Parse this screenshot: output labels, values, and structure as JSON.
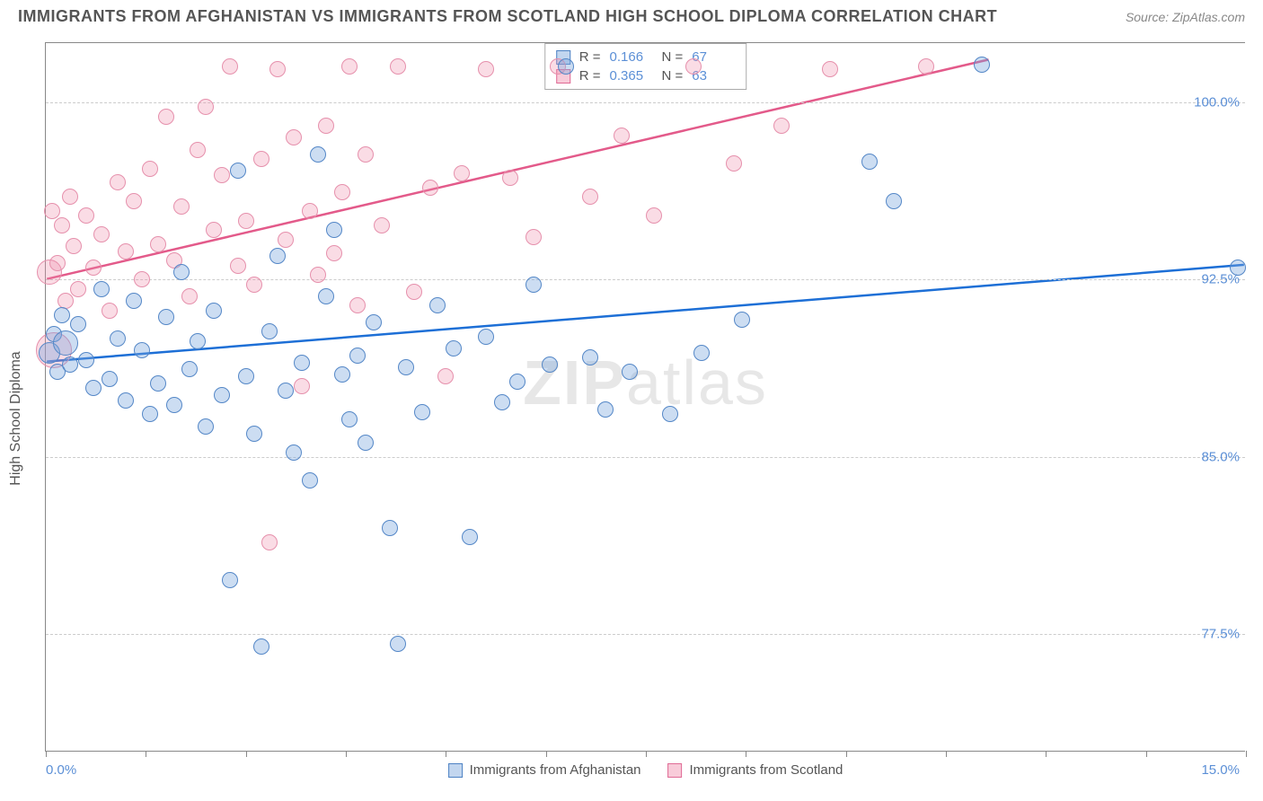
{
  "title": "IMMIGRANTS FROM AFGHANISTAN VS IMMIGRANTS FROM SCOTLAND HIGH SCHOOL DIPLOMA CORRELATION CHART",
  "source_label": "Source:",
  "source_name": "ZipAtlas.com",
  "ylabel": "High School Diploma",
  "watermark_a": "ZIP",
  "watermark_b": "atlas",
  "axes": {
    "xlim": [
      0.0,
      15.0
    ],
    "ylim": [
      72.5,
      102.5
    ],
    "xtick_positions": [
      0.0,
      1.25,
      2.5,
      3.75,
      5.0,
      6.25,
      7.5,
      8.75,
      10.0,
      11.25,
      12.5,
      13.75,
      15.0
    ],
    "ytick_positions": [
      77.5,
      85.0,
      92.5,
      100.0
    ],
    "ytick_labels": [
      "77.5%",
      "85.0%",
      "92.5%",
      "100.0%"
    ],
    "xmin_label": "0.0%",
    "xmax_label": "15.0%",
    "grid_color": "#cccccc",
    "background_color": "#ffffff"
  },
  "legend": {
    "series_a": "Immigrants from Afghanistan",
    "series_b": "Immigrants from Scotland",
    "r_label": "R =",
    "n_label": "N =",
    "a_r": "0.166",
    "a_n": "67",
    "b_r": "0.365",
    "b_n": "63"
  },
  "series": {
    "afghanistan": {
      "color_fill": "rgba(120,165,220,0.38)",
      "color_stroke": "#5487c7",
      "trend_color": "#1d6fd6",
      "trend_width": 2.5,
      "trend": {
        "x1": 0.0,
        "y1": 89.0,
        "x2": 15.0,
        "y2": 93.1
      },
      "marker_radius_default": 9,
      "points": [
        {
          "x": 0.05,
          "y": 89.4,
          "r": 12
        },
        {
          "x": 0.1,
          "y": 90.2,
          "r": 9
        },
        {
          "x": 0.15,
          "y": 88.6,
          "r": 9
        },
        {
          "x": 0.2,
          "y": 91.0,
          "r": 9
        },
        {
          "x": 0.25,
          "y": 89.8,
          "r": 14
        },
        {
          "x": 0.3,
          "y": 88.9,
          "r": 9
        },
        {
          "x": 0.4,
          "y": 90.6,
          "r": 9
        },
        {
          "x": 0.5,
          "y": 89.1,
          "r": 9
        },
        {
          "x": 0.6,
          "y": 87.9,
          "r": 9
        },
        {
          "x": 0.7,
          "y": 92.1,
          "r": 9
        },
        {
          "x": 0.8,
          "y": 88.3,
          "r": 9
        },
        {
          "x": 0.9,
          "y": 90.0,
          "r": 9
        },
        {
          "x": 1.0,
          "y": 87.4,
          "r": 9
        },
        {
          "x": 1.1,
          "y": 91.6,
          "r": 9
        },
        {
          "x": 1.2,
          "y": 89.5,
          "r": 9
        },
        {
          "x": 1.3,
          "y": 86.8,
          "r": 9
        },
        {
          "x": 1.4,
          "y": 88.1,
          "r": 9
        },
        {
          "x": 1.5,
          "y": 90.9,
          "r": 9
        },
        {
          "x": 1.6,
          "y": 87.2,
          "r": 9
        },
        {
          "x": 1.7,
          "y": 92.8,
          "r": 9
        },
        {
          "x": 1.8,
          "y": 88.7,
          "r": 9
        },
        {
          "x": 1.9,
          "y": 89.9,
          "r": 9
        },
        {
          "x": 2.0,
          "y": 86.3,
          "r": 9
        },
        {
          "x": 2.1,
          "y": 91.2,
          "r": 9
        },
        {
          "x": 2.2,
          "y": 87.6,
          "r": 9
        },
        {
          "x": 2.3,
          "y": 79.8,
          "r": 9
        },
        {
          "x": 2.4,
          "y": 97.1,
          "r": 9
        },
        {
          "x": 2.5,
          "y": 88.4,
          "r": 9
        },
        {
          "x": 2.6,
          "y": 86.0,
          "r": 9
        },
        {
          "x": 2.7,
          "y": 77.0,
          "r": 9
        },
        {
          "x": 2.8,
          "y": 90.3,
          "r": 9
        },
        {
          "x": 2.9,
          "y": 93.5,
          "r": 9
        },
        {
          "x": 3.0,
          "y": 87.8,
          "r": 9
        },
        {
          "x": 3.1,
          "y": 85.2,
          "r": 9
        },
        {
          "x": 3.2,
          "y": 89.0,
          "r": 9
        },
        {
          "x": 3.3,
          "y": 84.0,
          "r": 9
        },
        {
          "x": 3.4,
          "y": 97.8,
          "r": 9
        },
        {
          "x": 3.5,
          "y": 91.8,
          "r": 9
        },
        {
          "x": 3.6,
          "y": 94.6,
          "r": 9
        },
        {
          "x": 3.7,
          "y": 88.5,
          "r": 9
        },
        {
          "x": 3.8,
          "y": 86.6,
          "r": 9
        },
        {
          "x": 3.9,
          "y": 89.3,
          "r": 9
        },
        {
          "x": 4.0,
          "y": 85.6,
          "r": 9
        },
        {
          "x": 4.1,
          "y": 90.7,
          "r": 9
        },
        {
          "x": 4.3,
          "y": 82.0,
          "r": 9
        },
        {
          "x": 4.4,
          "y": 77.1,
          "r": 9
        },
        {
          "x": 4.5,
          "y": 88.8,
          "r": 9
        },
        {
          "x": 4.7,
          "y": 86.9,
          "r": 9
        },
        {
          "x": 4.9,
          "y": 91.4,
          "r": 9
        },
        {
          "x": 5.1,
          "y": 89.6,
          "r": 9
        },
        {
          "x": 5.3,
          "y": 81.6,
          "r": 9
        },
        {
          "x": 5.5,
          "y": 90.1,
          "r": 9
        },
        {
          "x": 5.7,
          "y": 87.3,
          "r": 9
        },
        {
          "x": 5.9,
          "y": 88.2,
          "r": 9
        },
        {
          "x": 6.1,
          "y": 92.3,
          "r": 9
        },
        {
          "x": 6.3,
          "y": 88.9,
          "r": 9
        },
        {
          "x": 6.5,
          "y": 101.5,
          "r": 9
        },
        {
          "x": 6.8,
          "y": 89.2,
          "r": 9
        },
        {
          "x": 7.0,
          "y": 87.0,
          "r": 9
        },
        {
          "x": 7.3,
          "y": 88.6,
          "r": 9
        },
        {
          "x": 7.8,
          "y": 86.8,
          "r": 9
        },
        {
          "x": 8.2,
          "y": 89.4,
          "r": 9
        },
        {
          "x": 8.7,
          "y": 90.8,
          "r": 9
        },
        {
          "x": 10.3,
          "y": 97.5,
          "r": 9
        },
        {
          "x": 10.6,
          "y": 95.8,
          "r": 9
        },
        {
          "x": 11.7,
          "y": 101.6,
          "r": 9
        },
        {
          "x": 14.9,
          "y": 93.0,
          "r": 9
        }
      ]
    },
    "scotland": {
      "color_fill": "rgba(240,140,170,0.30)",
      "color_stroke": "#e690ac",
      "trend_color": "#e35a8a",
      "trend_width": 2.5,
      "trend": {
        "x1": 0.0,
        "y1": 92.5,
        "x2": 11.8,
        "y2": 101.8
      },
      "marker_radius_default": 9,
      "points": [
        {
          "x": 0.05,
          "y": 92.8,
          "r": 14
        },
        {
          "x": 0.08,
          "y": 95.4,
          "r": 9
        },
        {
          "x": 0.1,
          "y": 89.5,
          "r": 20
        },
        {
          "x": 0.15,
          "y": 93.2,
          "r": 9
        },
        {
          "x": 0.2,
          "y": 94.8,
          "r": 9
        },
        {
          "x": 0.25,
          "y": 91.6,
          "r": 9
        },
        {
          "x": 0.3,
          "y": 96.0,
          "r": 9
        },
        {
          "x": 0.35,
          "y": 93.9,
          "r": 9
        },
        {
          "x": 0.4,
          "y": 92.1,
          "r": 9
        },
        {
          "x": 0.5,
          "y": 95.2,
          "r": 9
        },
        {
          "x": 0.6,
          "y": 93.0,
          "r": 9
        },
        {
          "x": 0.7,
          "y": 94.4,
          "r": 9
        },
        {
          "x": 0.8,
          "y": 91.2,
          "r": 9
        },
        {
          "x": 0.9,
          "y": 96.6,
          "r": 9
        },
        {
          "x": 1.0,
          "y": 93.7,
          "r": 9
        },
        {
          "x": 1.1,
          "y": 95.8,
          "r": 9
        },
        {
          "x": 1.2,
          "y": 92.5,
          "r": 9
        },
        {
          "x": 1.3,
          "y": 97.2,
          "r": 9
        },
        {
          "x": 1.4,
          "y": 94.0,
          "r": 9
        },
        {
          "x": 1.5,
          "y": 99.4,
          "r": 9
        },
        {
          "x": 1.6,
          "y": 93.3,
          "r": 9
        },
        {
          "x": 1.7,
          "y": 95.6,
          "r": 9
        },
        {
          "x": 1.8,
          "y": 91.8,
          "r": 9
        },
        {
          "x": 1.9,
          "y": 98.0,
          "r": 9
        },
        {
          "x": 2.0,
          "y": 99.8,
          "r": 9
        },
        {
          "x": 2.1,
          "y": 94.6,
          "r": 9
        },
        {
          "x": 2.2,
          "y": 96.9,
          "r": 9
        },
        {
          "x": 2.3,
          "y": 101.5,
          "r": 9
        },
        {
          "x": 2.4,
          "y": 93.1,
          "r": 9
        },
        {
          "x": 2.5,
          "y": 95.0,
          "r": 9
        },
        {
          "x": 2.6,
          "y": 92.3,
          "r": 9
        },
        {
          "x": 2.7,
          "y": 97.6,
          "r": 9
        },
        {
          "x": 2.8,
          "y": 81.4,
          "r": 9
        },
        {
          "x": 2.9,
          "y": 101.4,
          "r": 9
        },
        {
          "x": 3.0,
          "y": 94.2,
          "r": 9
        },
        {
          "x": 3.1,
          "y": 98.5,
          "r": 9
        },
        {
          "x": 3.2,
          "y": 88.0,
          "r": 9
        },
        {
          "x": 3.3,
          "y": 95.4,
          "r": 9
        },
        {
          "x": 3.4,
          "y": 92.7,
          "r": 9
        },
        {
          "x": 3.5,
          "y": 99.0,
          "r": 9
        },
        {
          "x": 3.6,
          "y": 93.6,
          "r": 9
        },
        {
          "x": 3.7,
          "y": 96.2,
          "r": 9
        },
        {
          "x": 3.8,
          "y": 101.5,
          "r": 9
        },
        {
          "x": 3.9,
          "y": 91.4,
          "r": 9
        },
        {
          "x": 4.0,
          "y": 97.8,
          "r": 9
        },
        {
          "x": 4.2,
          "y": 94.8,
          "r": 9
        },
        {
          "x": 4.4,
          "y": 101.5,
          "r": 9
        },
        {
          "x": 4.6,
          "y": 92.0,
          "r": 9
        },
        {
          "x": 4.8,
          "y": 96.4,
          "r": 9
        },
        {
          "x": 5.0,
          "y": 88.4,
          "r": 9
        },
        {
          "x": 5.2,
          "y": 97.0,
          "r": 9
        },
        {
          "x": 5.5,
          "y": 101.4,
          "r": 9
        },
        {
          "x": 5.8,
          "y": 96.8,
          "r": 9
        },
        {
          "x": 6.1,
          "y": 94.3,
          "r": 9
        },
        {
          "x": 6.4,
          "y": 101.5,
          "r": 9
        },
        {
          "x": 6.8,
          "y": 96.0,
          "r": 9
        },
        {
          "x": 7.2,
          "y": 98.6,
          "r": 9
        },
        {
          "x": 7.6,
          "y": 95.2,
          "r": 9
        },
        {
          "x": 8.1,
          "y": 101.5,
          "r": 9
        },
        {
          "x": 8.6,
          "y": 97.4,
          "r": 9
        },
        {
          "x": 9.2,
          "y": 99.0,
          "r": 9
        },
        {
          "x": 9.8,
          "y": 101.4,
          "r": 9
        },
        {
          "x": 11.0,
          "y": 101.5,
          "r": 9
        }
      ]
    }
  }
}
